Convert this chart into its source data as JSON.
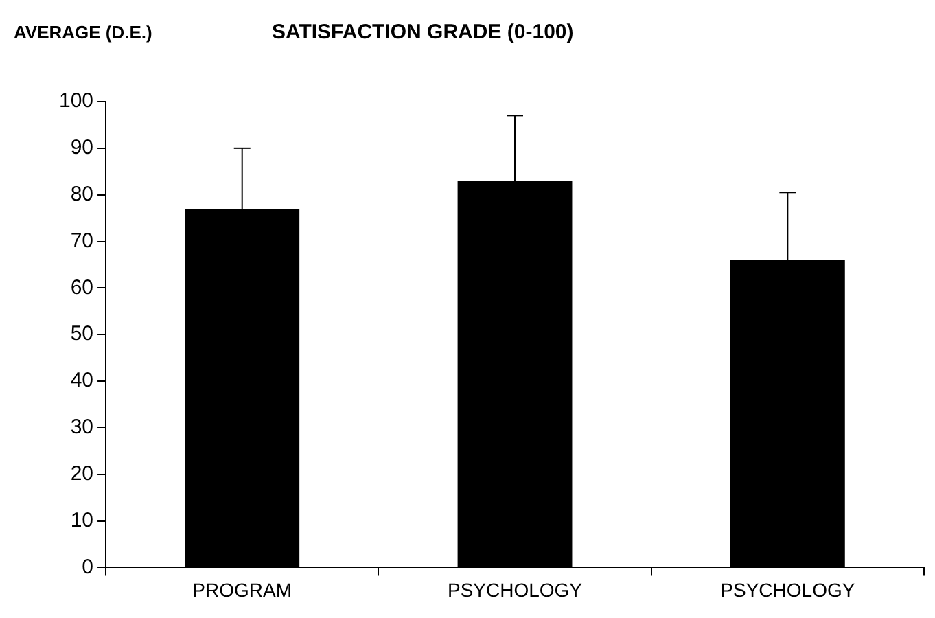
{
  "chart_data": {
    "type": "bar",
    "title": "SATISFACTION GRADE (0-100)",
    "ylabel": "AVERAGE (D.E.)",
    "categories": [
      "PROGRAM",
      "PSYCHOLOGY",
      "PSYCHOLOGY"
    ],
    "values": [
      77,
      83,
      66
    ],
    "errors": [
      13,
      14,
      14.5
    ],
    "color": "#000000",
    "ylim": [
      0,
      100
    ],
    "yticks": [
      0,
      10,
      20,
      30,
      40,
      50,
      60,
      70,
      80,
      90,
      100
    ],
    "grid": false,
    "legend": false
  }
}
